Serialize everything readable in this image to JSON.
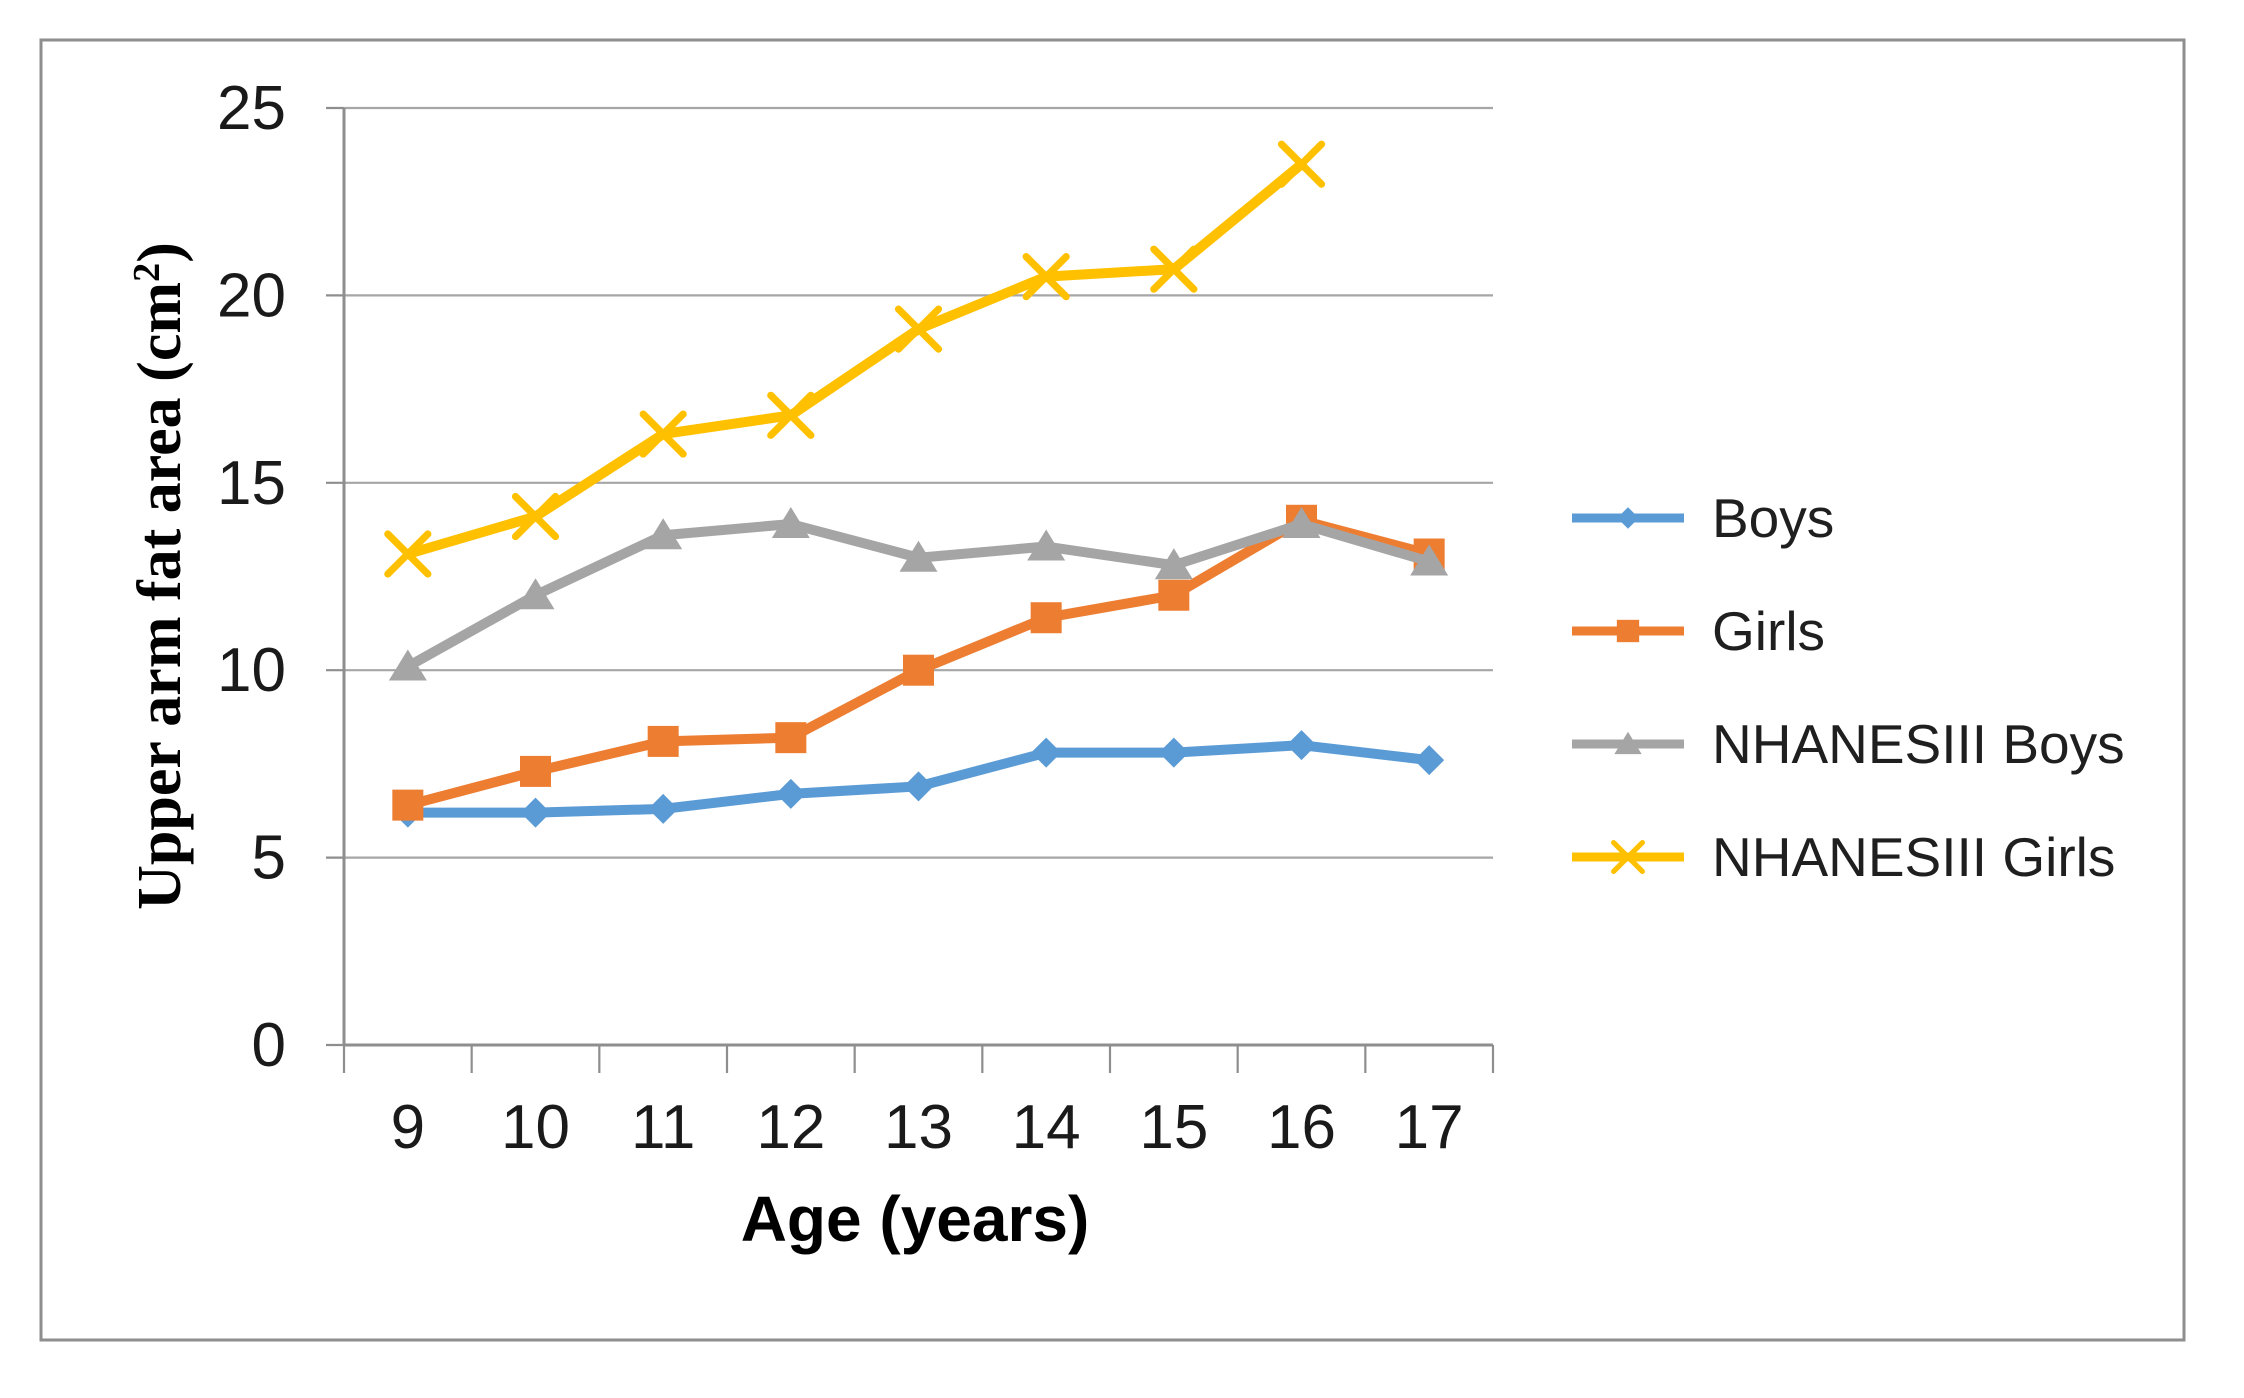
{
  "figure": {
    "border_color": "#8E8E8E",
    "background": "#FFFFFF"
  },
  "chart_data": {
    "type": "line",
    "title": "",
    "xlabel": "Age (years)",
    "ylabel": "Upper arm fat area (cm²)",
    "ylabel_parts": {
      "prefix": "Upper arm fat area (cm",
      "superscript": "2",
      "suffix": ")"
    },
    "categories": [
      9,
      10,
      11,
      12,
      13,
      14,
      15,
      16,
      17
    ],
    "xticklabels": [
      "9",
      "10",
      "11",
      "12",
      "13",
      "14",
      "15",
      "16",
      "17"
    ],
    "yticks": [
      0,
      5,
      10,
      15,
      20,
      25
    ],
    "yticklabels": [
      "0",
      "5",
      "10",
      "15",
      "20",
      "25"
    ],
    "ylim": [
      0,
      25
    ],
    "grid": true,
    "legend_position": "right",
    "series": [
      {
        "name": "Boys",
        "marker": "diamond",
        "color": "#5B9BD5",
        "values": [
          6.2,
          6.2,
          6.3,
          6.7,
          6.9,
          7.8,
          7.8,
          8.0,
          7.6
        ]
      },
      {
        "name": "Girls",
        "marker": "square",
        "color": "#ED7D31",
        "values": [
          6.4,
          7.3,
          8.1,
          8.2,
          10.0,
          11.4,
          12.0,
          14.0,
          13.1
        ]
      },
      {
        "name": "NHANESIII Boys",
        "marker": "triangle",
        "color": "#A5A5A5",
        "values": [
          10.1,
          12.0,
          13.6,
          13.9,
          13.0,
          13.3,
          12.8,
          13.9,
          12.9
        ]
      },
      {
        "name": "NHANESIII Girls",
        "marker": "x",
        "color": "#FFC000",
        "values": [
          13.1,
          14.1,
          16.3,
          16.8,
          19.1,
          20.5,
          20.7,
          23.5,
          null
        ]
      }
    ],
    "style": {
      "gridline_color": "#A6A6A6",
      "axis_color": "#8E8E8E",
      "tick_label_color": "#1A1A1A",
      "legend_text_color": "#1F1F1F",
      "title_color": "#000000"
    }
  }
}
